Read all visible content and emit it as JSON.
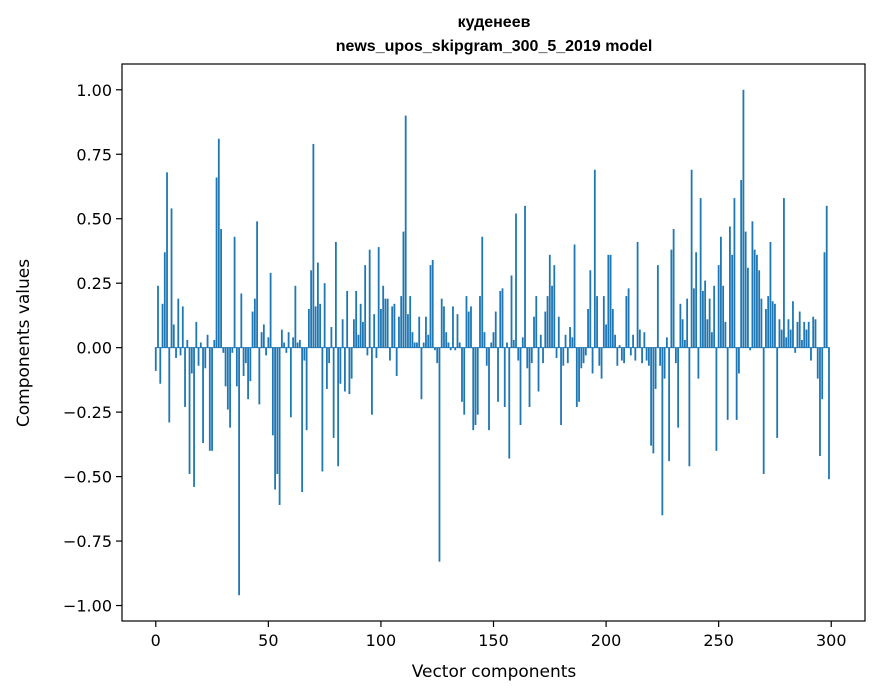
{
  "chart_data": {
    "type": "bar",
    "title": "куденеев",
    "subtitle": "news_upos_skipgram_300_5_2019 model",
    "xlabel": "Vector components",
    "ylabel": "Components values",
    "xlim": [
      -15,
      315
    ],
    "ylim": [
      -1.06,
      1.1
    ],
    "xticks": [
      0,
      50,
      100,
      150,
      200,
      250,
      300
    ],
    "xtick_labels": [
      "0",
      "50",
      "100",
      "150",
      "200",
      "250",
      "300"
    ],
    "yticks": [
      -1.0,
      -0.75,
      -0.5,
      -0.25,
      0.0,
      0.25,
      0.5,
      0.75,
      1.0
    ],
    "ytick_labels": [
      "−1.00",
      "−0.75",
      "−0.50",
      "−0.25",
      "0.00",
      "0.25",
      "0.50",
      "0.75",
      "1.00"
    ],
    "grid": false,
    "bar_color": "#1f77b4",
    "x": [
      0,
      1,
      2,
      3,
      4,
      5,
      6,
      7,
      8,
      9,
      10,
      11,
      12,
      13,
      14,
      15,
      16,
      17,
      18,
      19,
      20,
      21,
      22,
      23,
      24,
      25,
      26,
      27,
      28,
      29,
      30,
      31,
      32,
      33,
      34,
      35,
      36,
      37,
      38,
      39,
      40,
      41,
      42,
      43,
      44,
      45,
      46,
      47,
      48,
      49,
      50,
      51,
      52,
      53,
      54,
      55,
      56,
      57,
      58,
      59,
      60,
      61,
      62,
      63,
      64,
      65,
      66,
      67,
      68,
      69,
      70,
      71,
      72,
      73,
      74,
      75,
      76,
      77,
      78,
      79,
      80,
      81,
      82,
      83,
      84,
      85,
      86,
      87,
      88,
      89,
      90,
      91,
      92,
      93,
      94,
      95,
      96,
      97,
      98,
      99,
      100,
      101,
      102,
      103,
      104,
      105,
      106,
      107,
      108,
      109,
      110,
      111,
      112,
      113,
      114,
      115,
      116,
      117,
      118,
      119,
      120,
      121,
      122,
      123,
      124,
      125,
      126,
      127,
      128,
      129,
      130,
      131,
      132,
      133,
      134,
      135,
      136,
      137,
      138,
      139,
      140,
      141,
      142,
      143,
      144,
      145,
      146,
      147,
      148,
      149,
      150,
      151,
      152,
      153,
      154,
      155,
      156,
      157,
      158,
      159,
      160,
      161,
      162,
      163,
      164,
      165,
      166,
      167,
      168,
      169,
      170,
      171,
      172,
      173,
      174,
      175,
      176,
      177,
      178,
      179,
      180,
      181,
      182,
      183,
      184,
      185,
      186,
      187,
      188,
      189,
      190,
      191,
      192,
      193,
      194,
      195,
      196,
      197,
      198,
      199,
      200,
      201,
      202,
      203,
      204,
      205,
      206,
      207,
      208,
      209,
      210,
      211,
      212,
      213,
      214,
      215,
      216,
      217,
      218,
      219,
      220,
      221,
      222,
      223,
      224,
      225,
      226,
      227,
      228,
      229,
      230,
      231,
      232,
      233,
      234,
      235,
      236,
      237,
      238,
      239,
      240,
      241,
      242,
      243,
      244,
      245,
      246,
      247,
      248,
      249,
      250,
      251,
      252,
      253,
      254,
      255,
      256,
      257,
      258,
      259,
      260,
      261,
      262,
      263,
      264,
      265,
      266,
      267,
      268,
      269,
      270,
      271,
      272,
      273,
      274,
      275,
      276,
      277,
      278,
      279,
      280,
      281,
      282,
      283,
      284,
      285,
      286,
      287,
      288,
      289,
      290,
      291,
      292,
      293,
      294,
      295,
      296,
      297,
      298,
      299
    ],
    "values": [
      -0.09,
      0.24,
      -0.14,
      0.17,
      0.37,
      0.68,
      -0.29,
      0.54,
      0.09,
      -0.04,
      0.19,
      -0.03,
      0.16,
      -0.23,
      0.03,
      -0.49,
      -0.1,
      -0.54,
      0.1,
      -0.07,
      0.02,
      -0.37,
      -0.08,
      0.05,
      -0.4,
      -0.4,
      0.03,
      0.66,
      0.81,
      0.46,
      -0.02,
      -0.15,
      -0.24,
      -0.31,
      -0.02,
      0.43,
      -0.15,
      -0.96,
      0.21,
      -0.11,
      -0.06,
      -0.2,
      -0.13,
      0.14,
      0.19,
      0.49,
      -0.22,
      0.06,
      0.09,
      -0.03,
      0.04,
      0.29,
      -0.34,
      -0.55,
      -0.49,
      -0.61,
      0.07,
      0.02,
      -0.02,
      0.06,
      -0.27,
      0.04,
      0.24,
      0.02,
      0.03,
      -0.56,
      -0.05,
      -0.32,
      0.15,
      0.3,
      0.79,
      0.16,
      0.33,
      0.17,
      -0.48,
      0.25,
      -0.16,
      -0.06,
      0.08,
      -0.35,
      0.41,
      -0.46,
      -0.14,
      0.11,
      -0.17,
      0.22,
      -0.18,
      -0.12,
      0.11,
      0.22,
      0.05,
      0.17,
      0.1,
      0.32,
      -0.03,
      0.38,
      -0.26,
      0.13,
      -0.04,
      0.39,
      0.15,
      0.24,
      0.19,
      0.19,
      -0.05,
      0.16,
      0.17,
      -0.11,
      0.12,
      0.2,
      0.45,
      0.9,
      0.13,
      0.2,
      0.06,
      0.02,
      0.02,
      0.12,
      -0.2,
      0.02,
      0.12,
      0.05,
      0.32,
      0.34,
      -0.01,
      -0.06,
      -0.83,
      0.19,
      0.16,
      0.06,
      0.02,
      -0.01,
      0.16,
      -0.01,
      0.13,
      0.02,
      -0.21,
      -0.26,
      0.2,
      0.14,
      0.16,
      -0.32,
      -0.3,
      -0.26,
      0.2,
      0.43,
      0.06,
      -0.07,
      -0.32,
      0.02,
      0.06,
      0.14,
      -0.21,
      0.22,
      0.23,
      -0.23,
      0.02,
      -0.43,
      0.28,
      0.03,
      0.52,
      -0.05,
      -0.3,
      0.04,
      0.55,
      -0.08,
      -0.23,
      -0.06,
      0.12,
      0.2,
      -0.17,
      0.05,
      -0.06,
      0.14,
      0.2,
      0.36,
      0.24,
      0.32,
      -0.04,
      0.12,
      -0.3,
      -0.07,
      0.05,
      -0.06,
      0.08,
      0.04,
      0.4,
      -0.23,
      -0.21,
      -0.08,
      -0.06,
      -0.03,
      0.15,
      0.3,
      -0.1,
      0.69,
      0.2,
      -0.07,
      -0.12,
      0.2,
      0.09,
      0.36,
      0.36,
      0.15,
      0.05,
      -0.07,
      0.01,
      -0.05,
      -0.06,
      0.2,
      0.23,
      -0.03,
      0.05,
      -0.05,
      0.41,
      0.07,
      -0.06,
      0.06,
      -0.05,
      -0.07,
      -0.38,
      -0.41,
      -0.16,
      0.32,
      -0.07,
      -0.65,
      -0.12,
      0.04,
      -0.44,
      0.38,
      0.46,
      -0.06,
      -0.31,
      0.17,
      0.11,
      0.03,
      0.19,
      -0.46,
      0.69,
      0.23,
      0.37,
      -0.12,
      0.58,
      0.22,
      0.26,
      0.11,
      0.19,
      0.06,
      0.24,
      -0.4,
      0.32,
      0.43,
      0.24,
      0.1,
      -0.28,
      0.47,
      0.36,
      0.58,
      -0.28,
      -0.1,
      0.65,
      1.0,
      0.45,
      0.31,
      -0.01,
      0.49,
      0.38,
      0.36,
      0.3,
      0.19,
      -0.49,
      0.15,
      0.2,
      0.41,
      0.18,
      0.17,
      -0.35,
      0.11,
      0.07,
      0.58,
      0.04,
      0.11,
      0.07,
      0.18,
      -0.02,
      0.1,
      0.14,
      0.03,
      0.1,
      0.07,
      0.1,
      -0.05,
      0.12,
      0.11,
      -0.12,
      -0.42,
      -0.2,
      0.37,
      0.55,
      -0.51
    ]
  }
}
